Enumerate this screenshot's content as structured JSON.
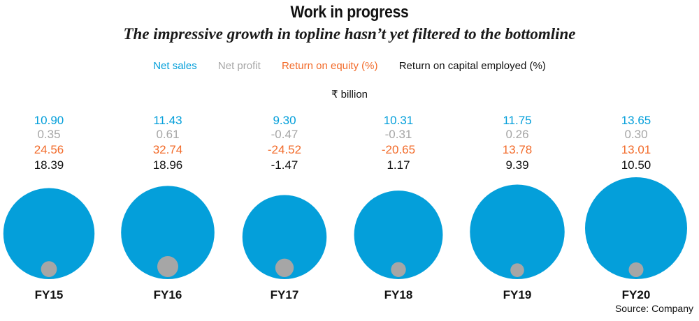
{
  "header": {
    "title": "Work in progress",
    "subtitle": "The impressive growth in topline hasn’t yet filtered to the bottomline"
  },
  "legend": [
    {
      "label": "Net sales",
      "color": "#049fda"
    },
    {
      "label": "Net profit",
      "color": "#a6a6a6"
    },
    {
      "label": "Return on equity (%)",
      "color": "#f26b2a"
    },
    {
      "label": "Return on capital employed (%)",
      "color": "#111111"
    }
  ],
  "unit": "₹ billion",
  "source": "Source: Company",
  "chart_data": {
    "type": "bubble",
    "categories": [
      "FY15",
      "FY16",
      "FY17",
      "FY18",
      "FY19",
      "FY20"
    ],
    "series": [
      {
        "name": "Net sales",
        "color": "#049fda",
        "values": [
          10.9,
          11.43,
          9.3,
          10.31,
          11.75,
          13.65
        ],
        "labels": [
          "10.90",
          "11.43",
          "9.30",
          "10.31",
          "11.75",
          "13.65"
        ]
      },
      {
        "name": "Net profit",
        "color": "#a6a6a6",
        "values": [
          0.35,
          0.61,
          -0.47,
          -0.31,
          0.26,
          0.3
        ],
        "labels": [
          "0.35",
          "0.61",
          "-0.47",
          "-0.31",
          "0.26",
          "0.30"
        ]
      },
      {
        "name": "Return on equity (%)",
        "color": "#f26b2a",
        "values": [
          24.56,
          32.74,
          -24.52,
          -20.65,
          13.78,
          13.01
        ],
        "labels": [
          "24.56",
          "32.74",
          "-24.52",
          "-20.65",
          "13.78",
          "13.01"
        ]
      },
      {
        "name": "Return on capital employed (%)",
        "color": "#111111",
        "values": [
          18.39,
          18.96,
          -1.47,
          1.17,
          9.39,
          10.5
        ],
        "labels": [
          "18.39",
          "18.96",
          "-1.47",
          "1.17",
          "9.39",
          "10.50"
        ]
      }
    ]
  }
}
